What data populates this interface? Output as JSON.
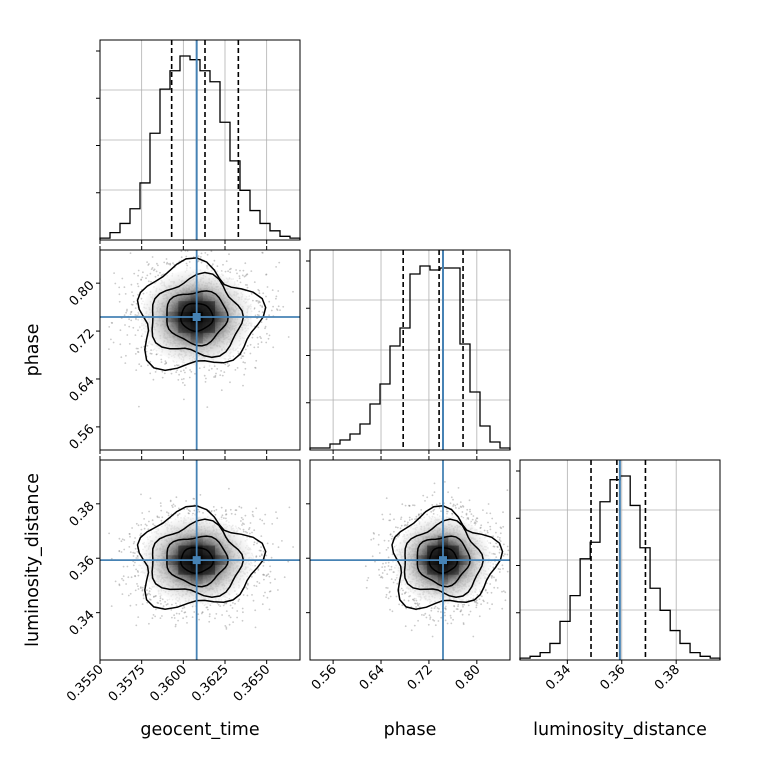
{
  "chart_data": {
    "type": "corner",
    "parameters": [
      "geocent_time",
      "phase",
      "luminosity_distance"
    ],
    "axis_labels": {
      "geocent_time": "geocent_time",
      "phase": "phase",
      "luminosity_distance": "luminosity_distance"
    },
    "truth_color": "#4682b4",
    "grid": true,
    "truths": {
      "geocent_time": 0.3608,
      "phase": 0.7435,
      "luminosity_distance": 0.3593
    },
    "quantiles": {
      "geocent_time": [
        0.3593,
        0.3613,
        0.3633
      ],
      "phase": [
        0.677,
        0.737,
        0.777
      ],
      "luminosity_distance": [
        0.3487,
        0.3582,
        0.3687
      ]
    },
    "ranges": {
      "geocent_time": [
        0.355,
        0.367
      ],
      "phase": [
        0.5214,
        0.8554
      ],
      "luminosity_distance": [
        0.3226,
        0.3961
      ]
    },
    "ticks": {
      "geocent_time": [
        "0.3550",
        "0.3575",
        "0.3600",
        "0.3625",
        "0.3650"
      ],
      "phase": [
        "0.56",
        "0.64",
        "0.72",
        "0.80"
      ],
      "luminosity_distance": [
        "0.34",
        "0.36",
        "0.38"
      ]
    },
    "histograms": {
      "geocent_time": {
        "bin_edges": [
          0.355,
          0.3556,
          0.3562,
          0.3568,
          0.3574,
          0.358,
          0.3586,
          0.3592,
          0.3598,
          0.3604,
          0.361,
          0.3616,
          0.3622,
          0.3628,
          0.3634,
          0.364,
          0.3646,
          0.3652,
          0.3658,
          0.3664,
          0.367
        ],
        "counts": [
          0.01,
          0.04,
          0.09,
          0.17,
          0.31,
          0.58,
          0.82,
          0.92,
          1.0,
          0.98,
          0.92,
          0.86,
          0.64,
          0.43,
          0.27,
          0.16,
          0.09,
          0.05,
          0.02,
          0.01
        ]
      },
      "phase": {
        "bin_edges": [
          0.5214,
          0.5381,
          0.5548,
          0.5715,
          0.5882,
          0.6049,
          0.6216,
          0.6383,
          0.655,
          0.6717,
          0.6884,
          0.7051,
          0.7218,
          0.7385,
          0.7552,
          0.7719,
          0.7886,
          0.8053,
          0.822,
          0.8387,
          0.8554
        ],
        "counts": [
          0.01,
          0.01,
          0.03,
          0.05,
          0.08,
          0.13,
          0.23,
          0.33,
          0.52,
          0.61,
          0.88,
          0.92,
          0.9,
          0.91,
          0.91,
          0.53,
          0.29,
          0.12,
          0.04,
          0.01
        ]
      },
      "luminosity_distance": {
        "bin_edges": [
          0.3226,
          0.3263,
          0.33,
          0.3336,
          0.3373,
          0.341,
          0.3447,
          0.3484,
          0.352,
          0.3557,
          0.3594,
          0.3631,
          0.3667,
          0.3704,
          0.3741,
          0.3778,
          0.3814,
          0.3851,
          0.3888,
          0.3925,
          0.3961
        ],
        "counts": [
          0.01,
          0.02,
          0.04,
          0.09,
          0.21,
          0.35,
          0.55,
          0.64,
          0.86,
          0.98,
          1.0,
          0.84,
          0.61,
          0.39,
          0.27,
          0.16,
          0.09,
          0.04,
          0.02,
          0.01
        ]
      }
    },
    "pairs": [
      {
        "x": "geocent_time",
        "y": "phase",
        "mean": [
          0.3608,
          0.7435
        ],
        "std": [
          0.00175,
          0.042
        ]
      },
      {
        "x": "geocent_time",
        "y": "luminosity_distance",
        "mean": [
          0.3608,
          0.3593
        ],
        "std": [
          0.00175,
          0.0085
        ]
      },
      {
        "x": "phase",
        "y": "luminosity_distance",
        "mean": [
          0.7435,
          0.3593
        ],
        "std": [
          0.042,
          0.0085
        ]
      }
    ]
  }
}
